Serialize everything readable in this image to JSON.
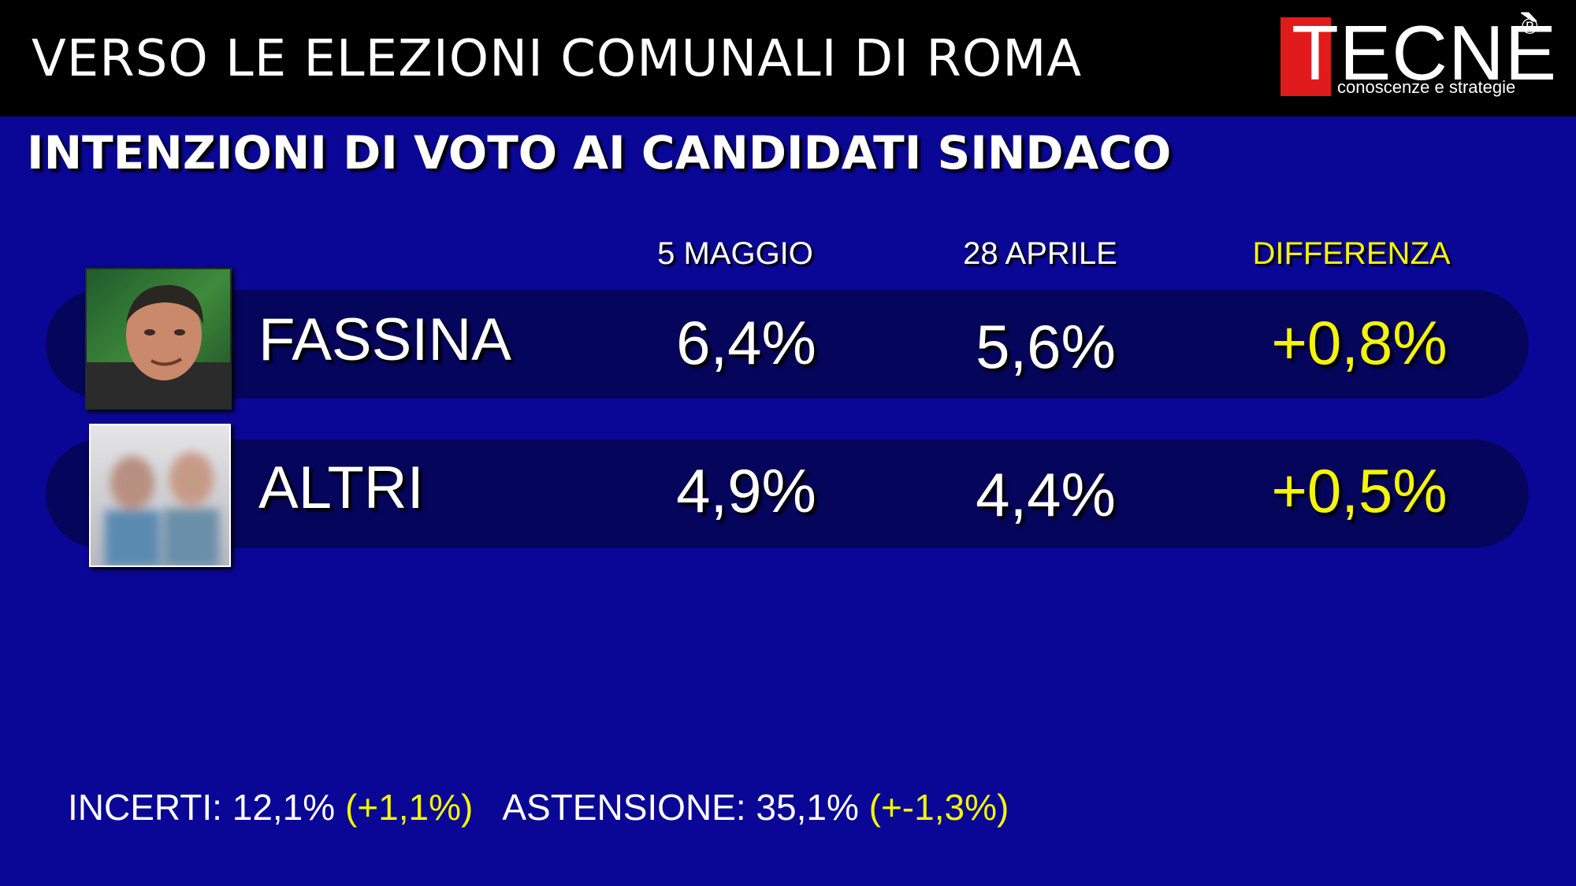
{
  "header": {
    "title": "VERSO LE ELEZIONI COMUNALI DI ROMA",
    "logo_text": "TECNÈ",
    "logo_reg": "®",
    "logo_tagline": "conoscenze e strategie"
  },
  "subtitle": "INTENZIONI DI VOTO AI CANDIDATI SINDACO",
  "colors": {
    "background": "#0a0796",
    "row_band": "#05055c",
    "highlight": "#f5f500",
    "logo_red": "#e11b1b"
  },
  "chart_data": {
    "type": "table",
    "columns": [
      "5 MAGGIO",
      "28 APRILE",
      "DIFFERENZA"
    ],
    "rows": [
      {
        "name": "FASSINA",
        "values": [
          "6,4%",
          "5,6%",
          "+0,8%"
        ]
      },
      {
        "name": "ALTRI",
        "values": [
          "4,9%",
          "4,4%",
          "+0,5%"
        ]
      }
    ]
  },
  "footer": {
    "incerti_label": "INCERTI: 12,1%",
    "incerti_delta": "(+1,1%)",
    "astensione_label": "ASTENSIONE: 35,1%",
    "astensione_delta": "(+-1,3%)"
  }
}
